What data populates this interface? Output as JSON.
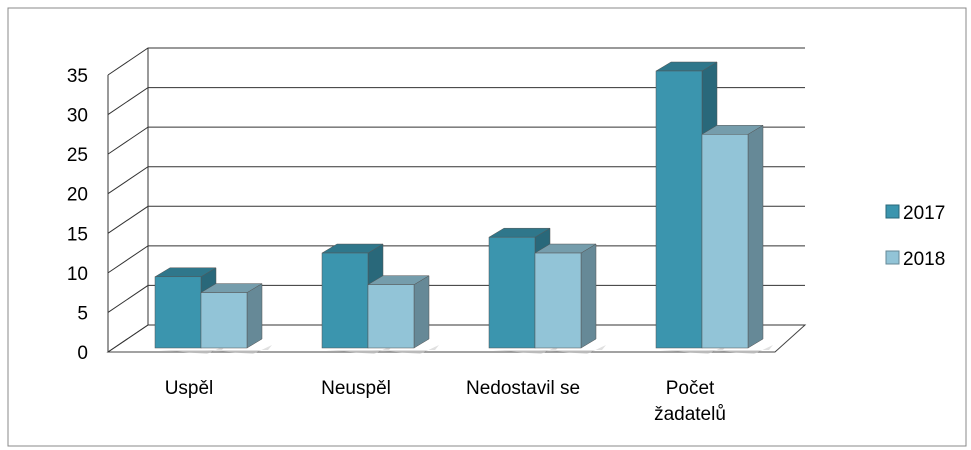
{
  "chart_data": {
    "type": "bar3d",
    "categories": [
      "Uspěl",
      "Neuspěl",
      "Nedostavil se",
      "Počet žadatelů"
    ],
    "series": [
      {
        "name": "2017",
        "color": "#3b95ae",
        "values": [
          9,
          12,
          14,
          35
        ]
      },
      {
        "name": "2018",
        "color": "#92c4d7",
        "values": [
          7,
          8,
          12,
          27
        ]
      }
    ],
    "ylim": [
      0,
      35
    ],
    "yticks": [
      0,
      5,
      10,
      15,
      20,
      25,
      30,
      35
    ],
    "grid": true,
    "legend": "right"
  }
}
